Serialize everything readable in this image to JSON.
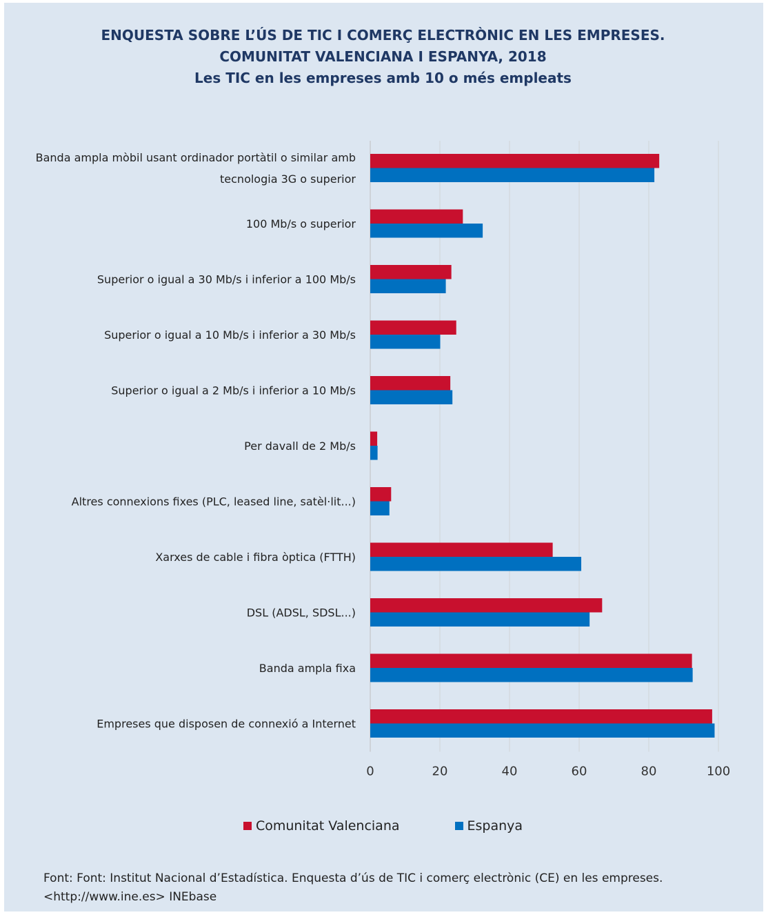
{
  "chart_data": {
    "type": "bar",
    "orientation": "horizontal",
    "title": [
      "ENQUESTA SOBRE L’ÚS DE TIC I COMERÇ ELECTRÒNIC EN LES EMPRESES.",
      "COMUNITAT VALENCIANA I ESPANYA, 2018",
      "Les TIC en les empreses amb 10 o més empleats"
    ],
    "categories": [
      [
        "Banda ampla mòbil usant ordinador portàtil o similar amb",
        "tecnologia 3G o superior"
      ],
      [
        "100 Mb/s o superior"
      ],
      [
        "Superior o igual a 30 Mb/s i inferior a 100 Mb/s"
      ],
      [
        "Superior o igual a 10 Mb/s i inferior a 30 Mb/s"
      ],
      [
        "Superior o igual a 2 Mb/s i inferior a 10 Mb/s"
      ],
      [
        "Per davall de 2 Mb/s"
      ],
      [
        "Altres connexions fixes (PLC, leased line, satèl·lit...)"
      ],
      [
        "Xarxes de cable i fibra òptica (FTTH)"
      ],
      [
        "DSL (ADSL, SDSL...)"
      ],
      [
        "Banda ampla fixa"
      ],
      [
        "Empreses que disposen de connexió a Internet"
      ]
    ],
    "series": [
      {
        "name": "Comunitat Valenciana",
        "color": "#c8102e",
        "values": [
          83,
          26.6,
          23.3,
          24.7,
          23,
          2,
          6,
          52.4,
          66.6,
          92.4,
          98.2
        ]
      },
      {
        "name": "Espanya",
        "color": "#0070c0",
        "values": [
          81.6,
          32.3,
          21.7,
          20.1,
          23.6,
          2.1,
          5.5,
          60.6,
          63,
          92.6,
          98.9
        ]
      }
    ],
    "xlim": [
      0,
      100
    ],
    "xticks": [
      0,
      20,
      40,
      60,
      80,
      100
    ],
    "grid": true,
    "legend_position": "bottom"
  },
  "source": "Font: Font: Institut Nacional d’Estadística. Enquesta d’ús de TIC i comerç electrònic (CE) en les empreses. <http://www.ine.es> INEbase"
}
